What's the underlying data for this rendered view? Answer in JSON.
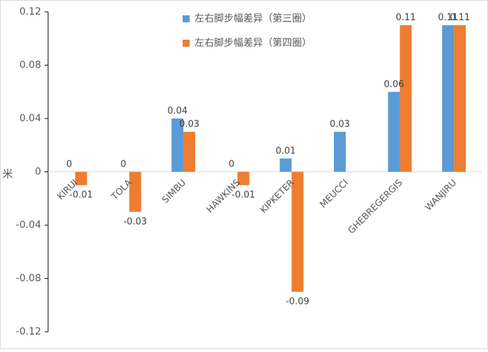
{
  "chart_data": {
    "type": "bar",
    "ylabel": "米",
    "ylim": [
      -0.12,
      0.12
    ],
    "y_ticks": [
      0.12,
      0.08,
      0.04,
      0,
      -0.04,
      -0.08,
      -0.12
    ],
    "y_tick_labels": [
      "0.12",
      "0.08",
      "0.04",
      "0",
      "-0.04",
      "-0.08",
      "-0.12"
    ],
    "grid": false,
    "legend_position": "top-center",
    "categories": [
      "KIRUI",
      "TOLA",
      "SIMBU",
      "HAWKINS",
      "KIPKETER",
      "MEUCCI",
      "GHEBREGERGIS",
      "WANJIRU"
    ],
    "series": [
      {
        "name": "左右脚步幅差异（第三圈）",
        "color": "#5b9bd5",
        "values": [
          0,
          0,
          0.04,
          0,
          0.01,
          0.03,
          0.06,
          0.11
        ],
        "labels": [
          "0",
          "0",
          "0.04",
          "0",
          "0.01",
          "0.03",
          "0.06",
          "0.11"
        ]
      },
      {
        "name": "左右脚步幅差异（第四圈）",
        "color": "#ed7d31",
        "values": [
          -0.01,
          -0.03,
          0.03,
          -0.01,
          -0.09,
          null,
          0.11,
          0.11
        ],
        "labels": [
          "-0.01",
          "-0.03",
          "0.03",
          "-0.01",
          "-0.09",
          null,
          "0.11",
          "0.11"
        ]
      }
    ]
  }
}
